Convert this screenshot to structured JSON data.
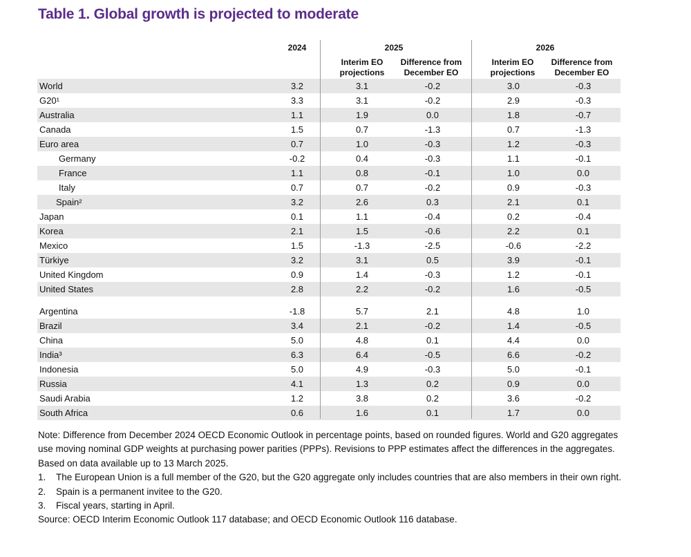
{
  "title": "Table 1. Global growth is projected to moderate",
  "header": {
    "y2024": "2024",
    "y2025": "2025",
    "y2026": "2026",
    "interim_l1": "Interim EO",
    "interim_l2": "projections",
    "diff_l1": "Difference from",
    "diff_l2": "December EO"
  },
  "rows": [
    {
      "label": "World",
      "v2024": "3.2",
      "i2025": "3.1",
      "d2025": "-0.2",
      "i2026": "3.0",
      "d2026": "-0.3"
    },
    {
      "label": "G20¹",
      "v2024": "3.3",
      "i2025": "3.1",
      "d2025": "-0.2",
      "i2026": "2.9",
      "d2026": "-0.3"
    },
    {
      "label": "Australia",
      "v2024": "1.1",
      "i2025": "1.9",
      "d2025": "0.0",
      "i2026": "1.8",
      "d2026": "-0.7"
    },
    {
      "label": "Canada",
      "v2024": "1.5",
      "i2025": "0.7",
      "d2025": "-1.3",
      "i2026": "0.7",
      "d2026": "-1.3"
    },
    {
      "label": "Euro area",
      "v2024": "0.7",
      "i2025": "1.0",
      "d2025": "-0.3",
      "i2026": "1.2",
      "d2026": "-0.3"
    },
    {
      "label": "Germany",
      "v2024": "-0.2",
      "i2025": "0.4",
      "d2025": "-0.3",
      "i2026": "1.1",
      "d2026": "-0.1"
    },
    {
      "label": "France",
      "v2024": "1.1",
      "i2025": "0.8",
      "d2025": "-0.1",
      "i2026": "1.0",
      "d2026": "0.0"
    },
    {
      "label": "Italy",
      "v2024": "0.7",
      "i2025": "0.7",
      "d2025": "-0.2",
      "i2026": "0.9",
      "d2026": "-0.3"
    },
    {
      "label": "Spain²",
      "v2024": "3.2",
      "i2025": "2.6",
      "d2025": "0.3",
      "i2026": "2.1",
      "d2026": "0.1"
    },
    {
      "label": "Japan",
      "v2024": "0.1",
      "i2025": "1.1",
      "d2025": "-0.4",
      "i2026": "0.2",
      "d2026": "-0.4"
    },
    {
      "label": "Korea",
      "v2024": "2.1",
      "i2025": "1.5",
      "d2025": "-0.6",
      "i2026": "2.2",
      "d2026": "0.1"
    },
    {
      "label": "Mexico",
      "v2024": "1.5",
      "i2025": "-1.3",
      "d2025": "-2.5",
      "i2026": "-0.6",
      "d2026": "-2.2"
    },
    {
      "label": "Türkiye",
      "v2024": "3.2",
      "i2025": "3.1",
      "d2025": "0.5",
      "i2026": "3.9",
      "d2026": "-0.1"
    },
    {
      "label": "United Kingdom",
      "v2024": "0.9",
      "i2025": "1.4",
      "d2025": "-0.3",
      "i2026": "1.2",
      "d2026": "-0.1"
    },
    {
      "label": "United States",
      "v2024": "2.8",
      "i2025": "2.2",
      "d2025": "-0.2",
      "i2026": "1.6",
      "d2026": "-0.5"
    },
    {
      "label": "Argentina",
      "v2024": "-1.8",
      "i2025": "5.7",
      "d2025": "2.1",
      "i2026": "4.8",
      "d2026": "1.0"
    },
    {
      "label": "Brazil",
      "v2024": "3.4",
      "i2025": "2.1",
      "d2025": "-0.2",
      "i2026": "1.4",
      "d2026": "-0.5"
    },
    {
      "label": "China",
      "v2024": "5.0",
      "i2025": "4.8",
      "d2025": "0.1",
      "i2026": "4.4",
      "d2026": "0.0"
    },
    {
      "label": "India³",
      "v2024": "6.3",
      "i2025": "6.4",
      "d2025": "-0.5",
      "i2026": "6.6",
      "d2026": "-0.2"
    },
    {
      "label": "Indonesia",
      "v2024": "5.0",
      "i2025": "4.9",
      "d2025": "-0.3",
      "i2026": "5.0",
      "d2026": "-0.1"
    },
    {
      "label": "Russia",
      "v2024": "4.1",
      "i2025": "1.3",
      "d2025": "0.2",
      "i2026": "0.9",
      "d2026": "0.0"
    },
    {
      "label": "Saudi Arabia",
      "v2024": "1.2",
      "i2025": "3.8",
      "d2025": "0.2",
      "i2026": "3.6",
      "d2026": "-0.2"
    },
    {
      "label": "South Africa",
      "v2024": "0.6",
      "i2025": "1.6",
      "d2025": "0.1",
      "i2026": "1.7",
      "d2026": "0.0"
    }
  ],
  "notes": {
    "main": "Note: Difference from December 2024 OECD Economic Outlook in percentage points, based on rounded figures. World and G20 aggregates use moving nominal GDP weights at purchasing power parities (PPPs). Revisions to PPP estimates affect the differences in the aggregates. Based on data available up to 13 March 2025.",
    "footnotes": [
      {
        "num": "1.",
        "text": "The European Union is a full member of the G20, but the G20 aggregate only includes countries that are also members in their own right."
      },
      {
        "num": "2.",
        "text": "Spain is a permanent invitee to the G20."
      },
      {
        "num": "3.",
        "text": "Fiscal years, starting in April."
      }
    ],
    "source": "Source: OECD Interim Economic Outlook 117 database; and OECD Economic Outlook 116 database."
  },
  "colors": {
    "title": "#5b2c8c",
    "shade": "#e6e6e6"
  }
}
